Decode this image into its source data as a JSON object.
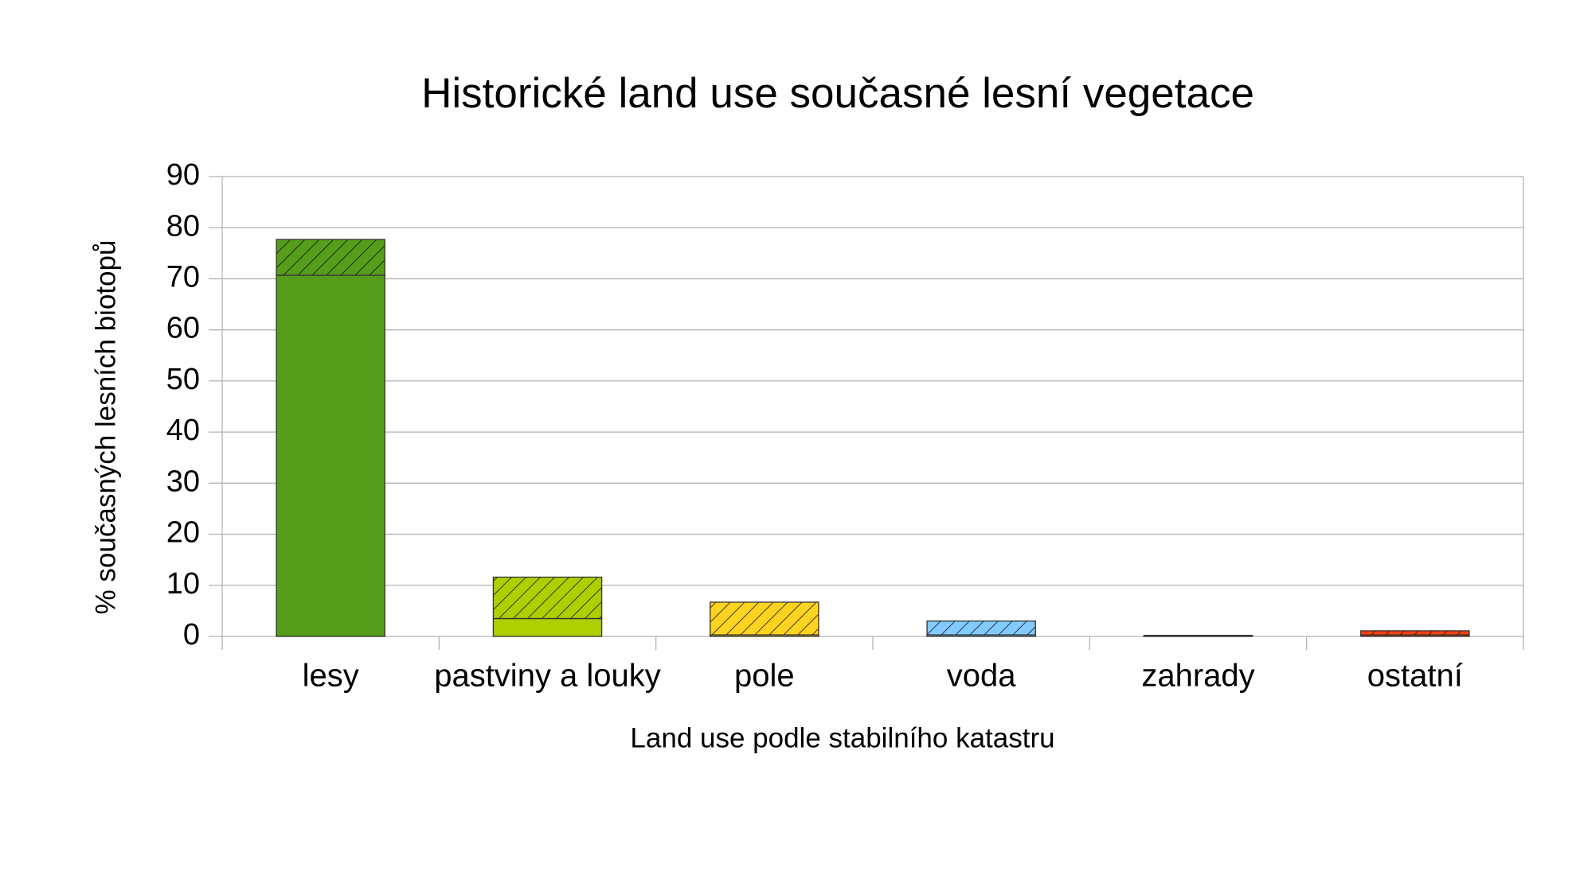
{
  "chart_data": {
    "type": "stacked_bar",
    "title": "Historické land use současné lesní vegetace",
    "x_label": "Land use podle stabilního katastru",
    "y_label": "% současných lesních biotopů",
    "categories": [
      "lesy",
      "pastviny a louky",
      "pole",
      "voda",
      "zahrady",
      "ostatní"
    ],
    "colors": [
      "#579d1c",
      "#aecf00",
      "#ffd320",
      "#83caff",
      "#7e0021",
      "#ff420e"
    ],
    "series": [
      {
        "pattern": "solid",
        "values": [
          70.7,
          3.5,
          0.3,
          0.3,
          0.1,
          0.3
        ]
      },
      {
        "pattern": "hatch",
        "values": [
          7.0,
          8.1,
          6.4,
          2.7,
          0.1,
          0.8
        ]
      }
    ],
    "ylim": [
      0,
      90
    ],
    "yticks": [
      0,
      10,
      20,
      30,
      40,
      50,
      60,
      70,
      80,
      90
    ],
    "grid": true
  }
}
